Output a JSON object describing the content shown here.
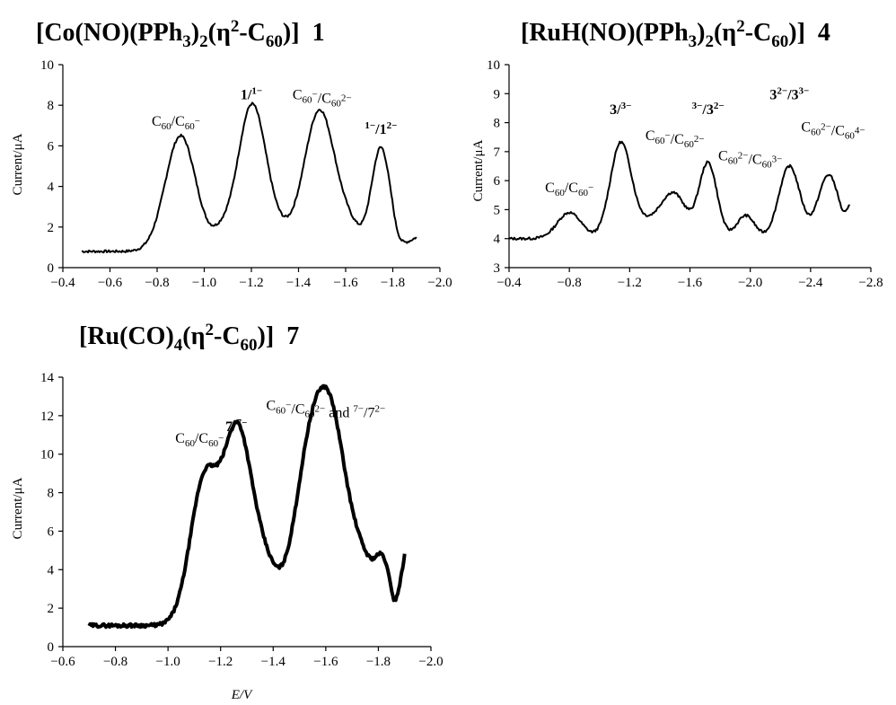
{
  "chart_data": [
    {
      "type": "line",
      "compound_number": "1",
      "title_parts": {
        "a": "[Co(NO)(PPh",
        "b": "3",
        "c": ")",
        "d": "2",
        "e": "(η",
        "f": "2",
        "g": "-C",
        "h": "60",
        "i": ")]"
      },
      "xlabel": "",
      "ylabel": "Current/μA",
      "xlim": [
        -0.4,
        -2.0
      ],
      "ylim": [
        0,
        10
      ],
      "xticks": [
        "−0.4",
        "−0.6",
        "−0.8",
        "−1.0",
        "−1.2",
        "−1.4",
        "−1.6",
        "−1.8",
        "−2.0"
      ],
      "yticks": [
        "0",
        "2",
        "4",
        "6",
        "8",
        "10"
      ],
      "baseline": 0.8,
      "line_width": 2,
      "x_range": [
        -0.48,
        -1.9
      ],
      "peaks": [
        {
          "x": -0.9,
          "y": 5.7,
          "w": 0.065
        },
        {
          "x": -1.07,
          "y": 0.7,
          "w": 0.04
        },
        {
          "x": -1.2,
          "y": 6.85,
          "w": 0.06
        },
        {
          "x": -1.49,
          "y": 6.9,
          "w": 0.065
        },
        {
          "x": -1.62,
          "y": 1.0,
          "w": 0.05
        },
        {
          "x": -1.75,
          "y": 5.1,
          "w": 0.04
        },
        {
          "x": -1.3,
          "y": 0.9,
          "w": 0.08
        }
      ],
      "tail": {
        "x_from": -1.8,
        "y_at_end": 1.5
      },
      "annotations": [
        {
          "label": "C60/C60−",
          "x": -0.88,
          "y": 7.0
        },
        {
          "label": "1/1−",
          "x": -1.2,
          "y": 8.3
        },
        {
          "label": "C60−/C602−",
          "x": -1.5,
          "y": 8.3
        },
        {
          "label": "1−/12−",
          "x": -1.75,
          "y": 6.6
        }
      ]
    },
    {
      "type": "line",
      "compound_number": "4",
      "title_parts": {
        "a": "[RuH(NO)(PPh",
        "b": "3",
        "c": ")",
        "d": "2",
        "e": "(η",
        "f": "2",
        "g": "-C",
        "h": "60",
        "i": ")]"
      },
      "xlabel": "",
      "ylabel": "Current/μA",
      "xlim": [
        -0.4,
        -2.8
      ],
      "ylim": [
        3,
        10
      ],
      "xticks": [
        "−0.4",
        "−0.8",
        "−1.2",
        "−1.6",
        "−2.0",
        "−2.4",
        "−2.8"
      ],
      "yticks": [
        "3",
        "4",
        "5",
        "6",
        "7",
        "8",
        "9",
        "10"
      ],
      "baseline": 4.0,
      "line_width": 2,
      "x_range": [
        -0.4,
        -2.66
      ],
      "peaks": [
        {
          "x": -0.8,
          "y": 0.9,
          "w": 0.08
        },
        {
          "x": -1.14,
          "y": 3.2,
          "w": 0.07
        },
        {
          "x": -1.5,
          "y": 1.3,
          "w": 0.08
        },
        {
          "x": -1.72,
          "y": 2.6,
          "w": 0.06
        },
        {
          "x": -1.97,
          "y": 0.8,
          "w": 0.06
        },
        {
          "x": -2.26,
          "y": 2.5,
          "w": 0.07
        },
        {
          "x": -2.52,
          "y": 2.2,
          "w": 0.07
        },
        {
          "x": -1.35,
          "y": 0.6,
          "w": 0.12
        }
      ],
      "tail": {
        "x_from": -2.6,
        "y_at_end": 5.2
      },
      "annotations": [
        {
          "label": "C60/C60−",
          "x": -0.8,
          "y": 5.6
        },
        {
          "label": "3/3−",
          "x": -1.14,
          "y": 8.3
        },
        {
          "label": "C60−/C602−",
          "x": -1.5,
          "y": 7.4
        },
        {
          "label": "3−/32−",
          "x": -1.72,
          "y": 8.3
        },
        {
          "label": "C602−/C603−",
          "x": -2.0,
          "y": 6.7
        },
        {
          "label": "32−/33−",
          "x": -2.26,
          "y": 8.8
        },
        {
          "label": "C602−/C604−",
          "x": -2.55,
          "y": 7.7
        }
      ]
    },
    {
      "type": "line",
      "compound_number": "7",
      "title_parts": {
        "a": "[Ru(CO)",
        "b": "4",
        "c": "",
        "d": "",
        "e": "(η",
        "f": "2",
        "g": "-C",
        "h": "60",
        "i": ")]"
      },
      "xlabel": "E/V",
      "ylabel": "Current/μA",
      "xlim": [
        -0.6,
        -2.0
      ],
      "ylim": [
        0,
        14
      ],
      "xticks": [
        "−0.6",
        "−0.8",
        "−1.0",
        "−1.2",
        "−1.4",
        "−1.6",
        "−1.8",
        "−2.0"
      ],
      "yticks": [
        "0",
        "2",
        "4",
        "6",
        "8",
        "10",
        "12",
        "14"
      ],
      "baseline": 1.1,
      "line_width": 4,
      "x_range": [
        -0.7,
        -1.9
      ],
      "peaks": [
        {
          "x": -1.14,
          "y": 7.6,
          "w": 0.055
        },
        {
          "x": -1.26,
          "y": 8.7,
          "w": 0.05
        },
        {
          "x": -1.35,
          "y": 3.6,
          "w": 0.06
        },
        {
          "x": -1.54,
          "y": 8.5,
          "w": 0.06
        },
        {
          "x": -1.63,
          "y": 8.3,
          "w": 0.055
        },
        {
          "x": -1.74,
          "y": 3.0,
          "w": 0.05
        },
        {
          "x": -1.82,
          "y": 2.7,
          "w": 0.03
        }
      ],
      "tail": {
        "x_from": -1.86,
        "y_at_end": 4.8
      },
      "annotations": [
        {
          "label": "C60/C60−",
          "x": -1.12,
          "y": 10.6
        },
        {
          "label": "7/7−",
          "x": -1.26,
          "y": 11.2
        },
        {
          "label": "C60−/C602− and 7−/72−",
          "x": -1.6,
          "y": 12.3
        }
      ]
    }
  ]
}
